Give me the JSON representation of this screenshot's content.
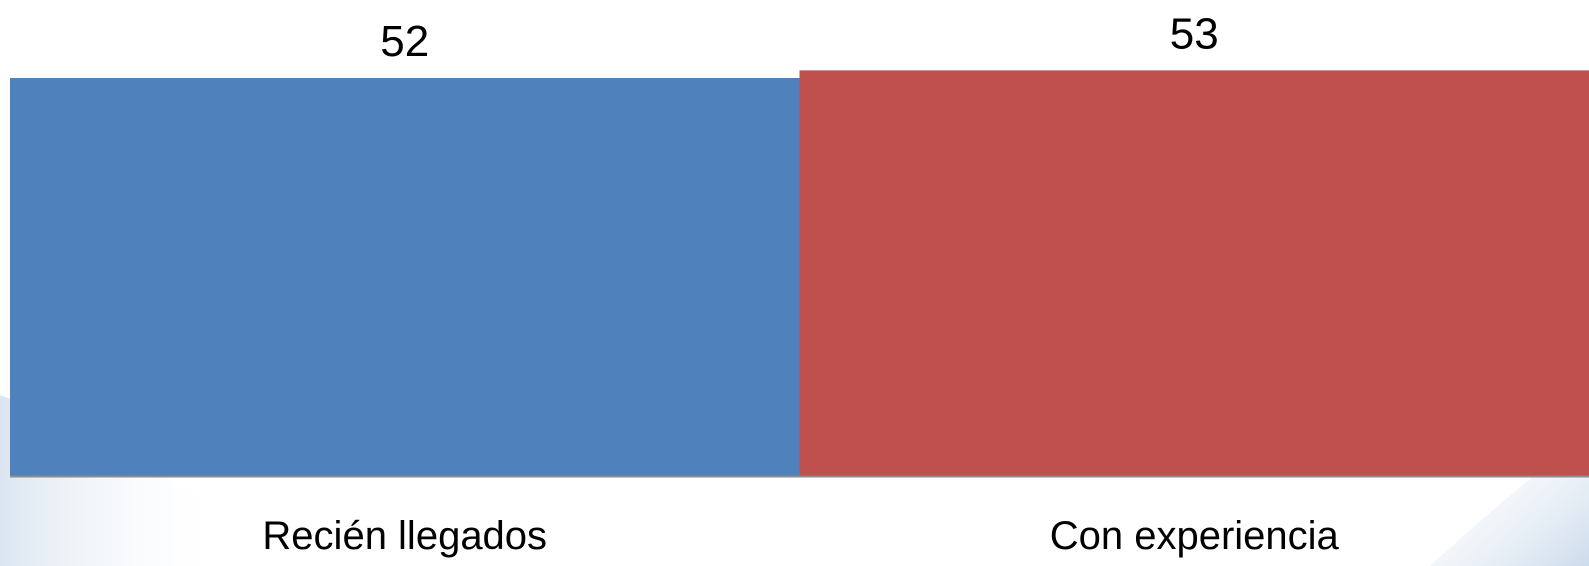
{
  "chart_data": {
    "type": "bar",
    "categories": [
      "Recién llegados",
      "Con experiencia"
    ],
    "values": [
      52,
      53
    ],
    "colors": [
      "#4f81bd",
      "#c0504d"
    ],
    "data_labels": [
      "52",
      "53"
    ],
    "axis_color": "#8c8c8c",
    "grid": false,
    "legend": "none",
    "title": "",
    "xlabel": "",
    "ylabel": ""
  }
}
